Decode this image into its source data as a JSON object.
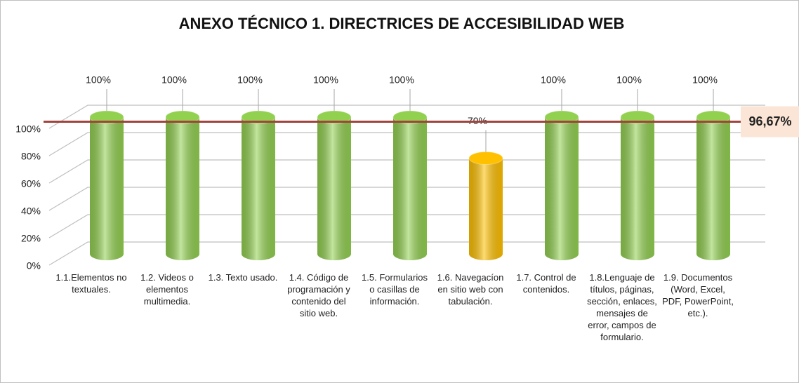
{
  "chart_data": {
    "type": "bar3d",
    "title": "ANEXO TÉCNICO 1. DIRECTRICES DE ACCESIBILIDAD WEB",
    "categories": [
      "1.1.Elementos no textuales.",
      "1.2. Videos o elementos multimedia.",
      "1.3. Texto usado.",
      "1.4. Código de programación y contenido del sitio web.",
      "1.5. Formularios o casillas de información.",
      "1.6. Navegacíon en sitio web con tabulación.",
      "1.7. Control de contenidos.",
      "1.8.Lenguaje de títulos, páginas, sección, enlaces, mensajes de error, campos de formulario.",
      "1.9. Documentos (Word, Excel, PDF, PowerPoint, etc.)."
    ],
    "values": [
      100,
      100,
      100,
      100,
      100,
      70,
      100,
      100,
      100
    ],
    "value_labels": [
      "100%",
      "100%",
      "100%",
      "100%",
      "100%",
      "70%",
      "100%",
      "100%",
      "100%"
    ],
    "colors": [
      "#92d050",
      "#92d050",
      "#92d050",
      "#92d050",
      "#92d050",
      "#ffc000",
      "#92d050",
      "#92d050",
      "#92d050"
    ],
    "ylim": [
      0,
      100
    ],
    "yticks": [
      {
        "value": 0,
        "label": "0%"
      },
      {
        "value": 20,
        "label": "20%"
      },
      {
        "value": 40,
        "label": "40%"
      },
      {
        "value": 60,
        "label": "60%"
      },
      {
        "value": 80,
        "label": "80%"
      },
      {
        "value": 100,
        "label": "100%"
      }
    ],
    "grid": true,
    "average": {
      "value": 96.67,
      "label": "96,67%",
      "color": "#a0443c"
    }
  }
}
